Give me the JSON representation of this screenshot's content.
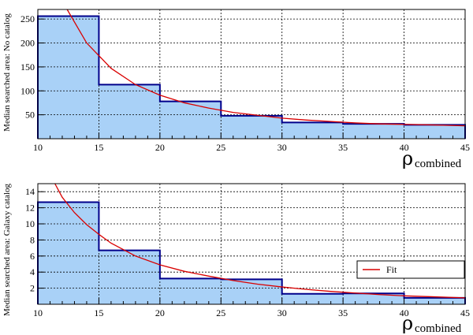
{
  "chart_data": [
    {
      "type": "histogram",
      "ylabel": "Median searched area: No catalog",
      "xlabel_symbol": "ρ",
      "xlabel_subscript": "combined",
      "xlim": [
        10,
        45
      ],
      "ylim": [
        0,
        270
      ],
      "bin_edges": [
        10,
        15,
        20,
        25,
        30,
        35,
        40,
        45
      ],
      "values": [
        256,
        113,
        78,
        48,
        34,
        31,
        29
      ],
      "x_ticks": [
        "10",
        "15",
        "20",
        "25",
        "30",
        "35",
        "40",
        "45"
      ],
      "y_ticks": [
        50,
        100,
        150,
        200,
        250
      ],
      "fit_x": [
        12.4,
        14,
        16,
        18,
        20,
        22,
        24,
        26,
        28,
        30,
        32,
        34,
        36,
        38,
        40,
        42,
        45
      ],
      "fit_y": [
        270,
        200,
        147,
        113,
        91,
        75,
        64,
        55,
        49,
        43,
        39,
        36,
        33,
        31,
        30,
        29,
        27
      ],
      "colors": {
        "fill": "#a9d1f7",
        "outline": "#00008b",
        "fit": "#d90000"
      },
      "grid": true
    },
    {
      "type": "histogram",
      "ylabel": "Median searched area: Galaxy catalog",
      "xlabel_symbol": "ρ",
      "xlabel_subscript": "combined",
      "xlim": [
        10,
        45
      ],
      "ylim": [
        0,
        15
      ],
      "bin_edges": [
        10,
        15,
        20,
        25,
        30,
        35,
        40,
        45
      ],
      "values": [
        12.7,
        6.7,
        3.2,
        3.1,
        1.3,
        1.35,
        0.8
      ],
      "x_ticks": [
        "10",
        "15",
        "20",
        "25",
        "30",
        "35",
        "40",
        "45"
      ],
      "y_ticks": [
        2,
        4,
        6,
        8,
        10,
        12,
        14
      ],
      "fit_x": [
        11.4,
        12,
        13,
        14,
        15,
        16,
        18,
        20,
        22,
        24,
        26,
        28,
        30,
        32,
        34,
        36,
        38,
        40,
        42,
        45
      ],
      "fit_y": [
        15,
        13.3,
        11.4,
        9.9,
        8.7,
        7.6,
        6.0,
        4.9,
        4.1,
        3.5,
        2.95,
        2.5,
        2.15,
        1.85,
        1.6,
        1.4,
        1.2,
        1.05,
        0.95,
        0.8
      ],
      "legend": {
        "entries": [
          "Fit"
        ],
        "placement": "right"
      },
      "colors": {
        "fill": "#a9d1f7",
        "outline": "#00008b",
        "fit": "#d90000"
      },
      "grid": true
    }
  ]
}
